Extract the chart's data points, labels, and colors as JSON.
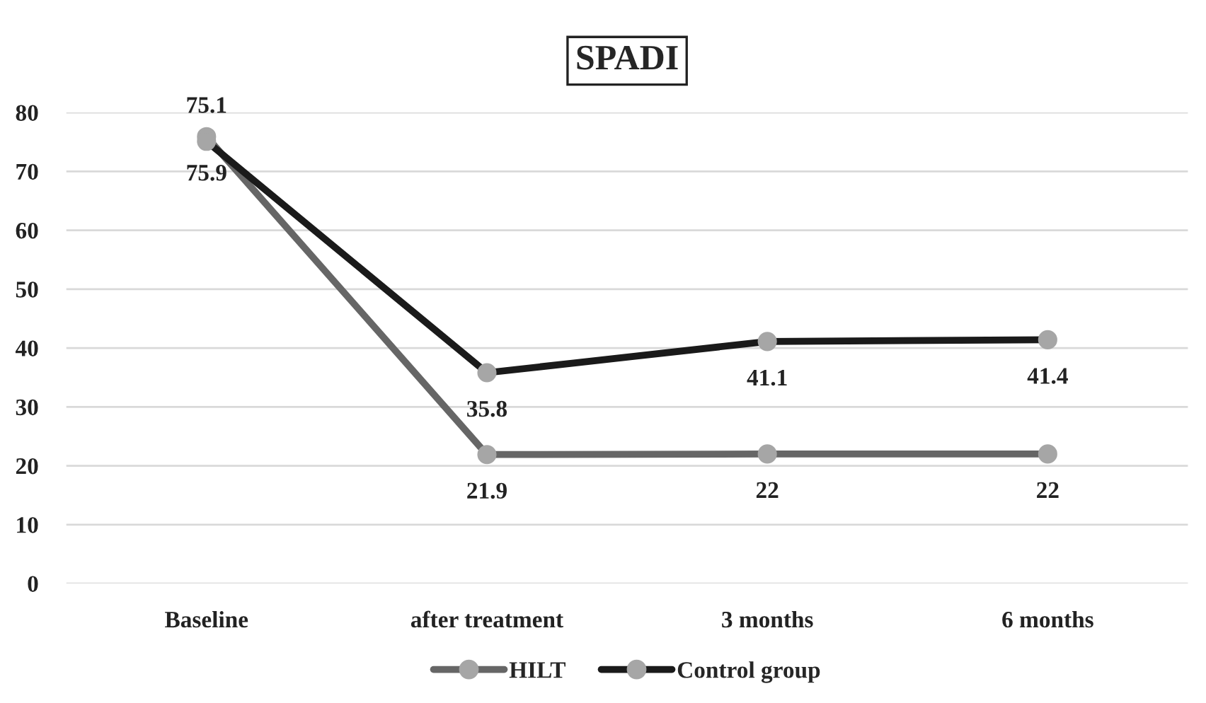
{
  "chart_data": {
    "type": "line",
    "title": "SPADI",
    "categories": [
      "Baseline",
      "after treatment",
      "3 months",
      "6 months"
    ],
    "series": [
      {
        "name": "HILT",
        "color": "#666666",
        "values": [
          75.9,
          21.9,
          22,
          22
        ]
      },
      {
        "name": "Control group",
        "color": "#1a1a1a",
        "values": [
          75.1,
          35.8,
          41.1,
          41.4
        ]
      }
    ],
    "ylim": [
      0,
      80
    ],
    "yticks": [
      0,
      10,
      20,
      30,
      40,
      50,
      60,
      70,
      80
    ],
    "grid": "y",
    "legend": "bottom",
    "marker": "circle",
    "line_style": "solid",
    "data_labels": true
  }
}
